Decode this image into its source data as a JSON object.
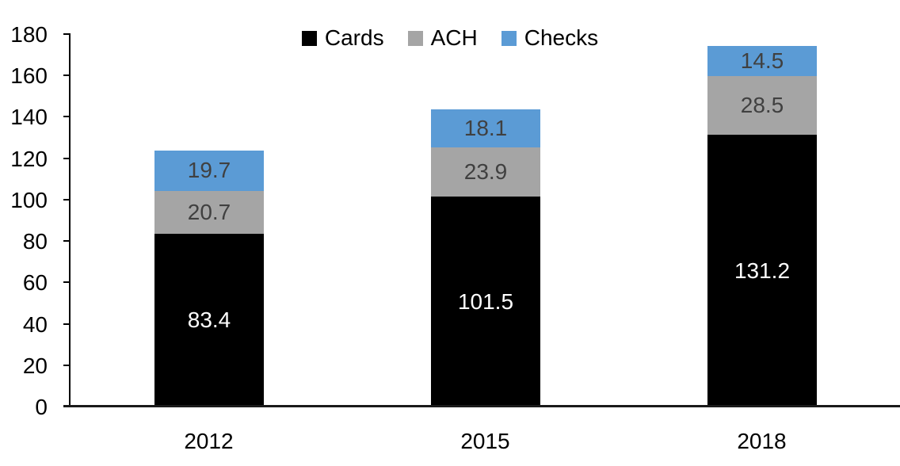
{
  "chart_data": {
    "type": "bar",
    "stacked": true,
    "title": "",
    "xlabel": "",
    "ylabel": "",
    "categories": [
      "2012",
      "2015",
      "2018"
    ],
    "series": [
      {
        "name": "Cards",
        "color": "#000000",
        "label_color": "#ffffff",
        "values": [
          83.4,
          101.5,
          131.2
        ]
      },
      {
        "name": "ACH",
        "color": "#a5a5a5",
        "label_color": "#404040",
        "values": [
          20.7,
          23.9,
          28.5
        ]
      },
      {
        "name": "Checks",
        "color": "#5b9bd5",
        "label_color": "#404040",
        "values": [
          19.7,
          18.1,
          14.5
        ]
      }
    ],
    "totals": [
      123.8,
      143.5,
      174.2
    ],
    "ylim": [
      0,
      180
    ],
    "yticks": [
      0,
      20,
      40,
      60,
      80,
      100,
      120,
      140,
      160,
      180
    ],
    "grid": false,
    "value_labels": "inside-center",
    "legend": {
      "position": "top-center",
      "entries": [
        "Cards",
        "ACH",
        "Checks"
      ]
    },
    "axis_color": "#000000",
    "background_color": "#ffffff"
  }
}
